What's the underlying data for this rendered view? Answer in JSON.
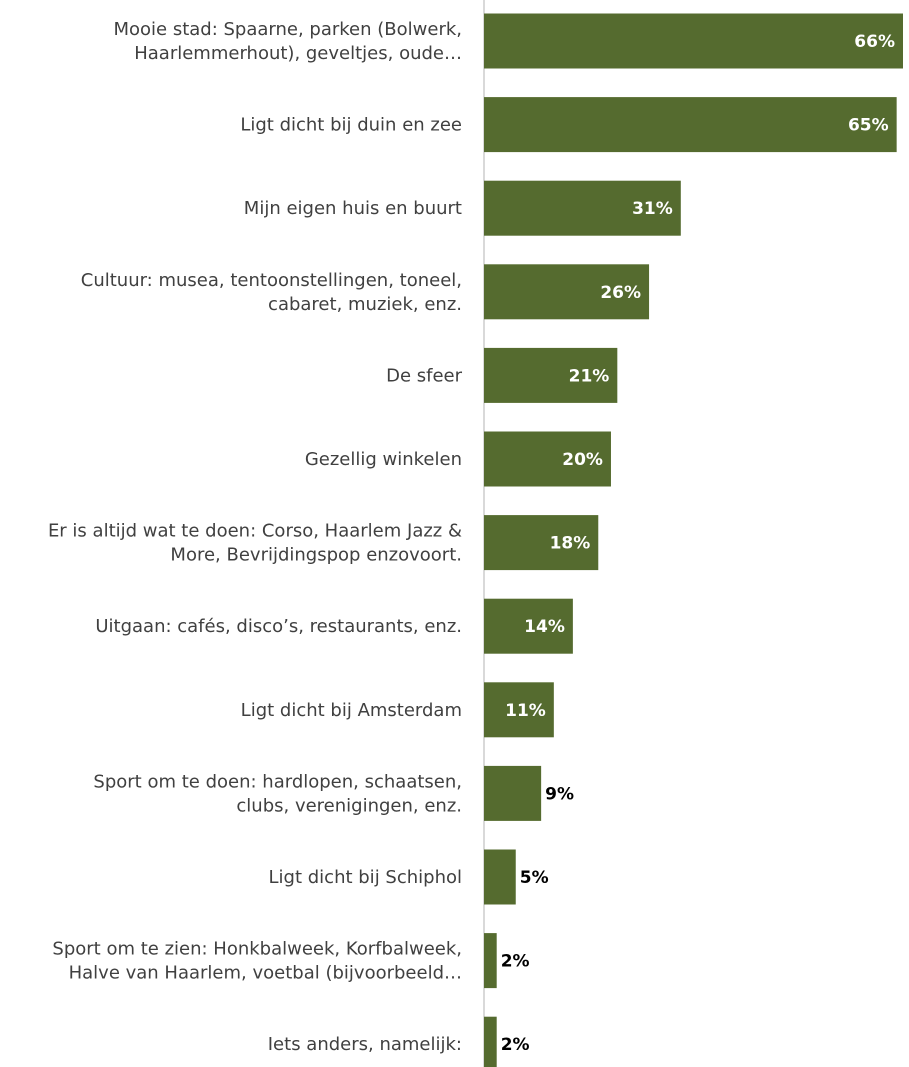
{
  "chart_data": {
    "type": "bar",
    "orientation": "horizontal",
    "categories": [
      [
        "Mooie stad: Spaarne, parken (Bolwerk,",
        "Haarlemmerhout), geveltjes, oude…"
      ],
      [
        "Ligt dicht bij duin en zee"
      ],
      [
        "Mijn eigen huis en buurt"
      ],
      [
        "Cultuur: musea, tentoonstellingen, toneel,",
        "cabaret, muziek, enz."
      ],
      [
        "De sfeer"
      ],
      [
        "Gezellig winkelen"
      ],
      [
        "Er is altijd wat te doen: Corso, Haarlem Jazz &",
        "More, Bevrijdingspop enzovoort."
      ],
      [
        "Uitgaan: cafés, disco’s, restaurants, enz."
      ],
      [
        "Ligt dicht bij Amsterdam"
      ],
      [
        "Sport om te doen: hardlopen, schaatsen,",
        "clubs, verenigingen, enz."
      ],
      [
        "Ligt dicht bij Schiphol"
      ],
      [
        "Sport om te zien: Honkbalweek, Korfbalweek,",
        "Halve van Haarlem, voetbal (bijvoorbeeld…"
      ],
      [
        "Iets anders, namelijk:"
      ]
    ],
    "values": [
      66,
      65,
      31,
      26,
      21,
      20,
      18,
      14,
      11,
      9,
      5,
      2,
      2
    ],
    "value_labels": [
      "66%",
      "65%",
      "31%",
      "26%",
      "21%",
      "20%",
      "18%",
      "14%",
      "11%",
      "9%",
      "5%",
      "2%",
      "2%"
    ],
    "value_unit": "%",
    "title": "",
    "xlabel": "",
    "ylabel": "",
    "grid": false,
    "legend": "none",
    "bar_color": "#556b2f",
    "label_inside_color": "#ffffff",
    "label_outside_color": "#000000",
    "axis_color": "#d9d9d9",
    "category_color": "#404040"
  }
}
